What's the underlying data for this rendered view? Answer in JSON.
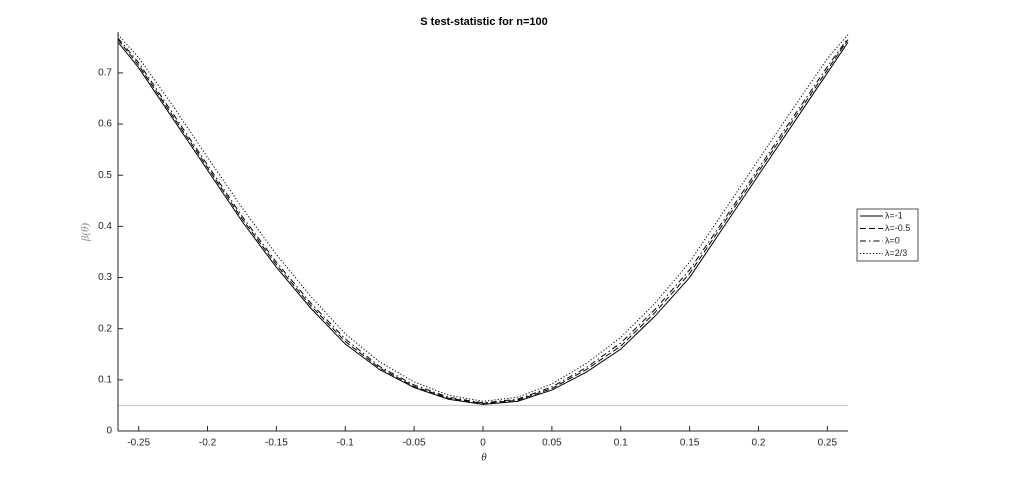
{
  "chart_data": {
    "type": "line",
    "title": "S test-statistic for n=100",
    "xlabel": "θ",
    "ylabel": "β(θ)",
    "x": [
      -0.265,
      -0.25,
      -0.225,
      -0.2,
      -0.175,
      -0.15,
      -0.125,
      -0.1,
      -0.075,
      -0.05,
      -0.025,
      0,
      0.025,
      0.05,
      0.075,
      0.1,
      0.125,
      0.15,
      0.175,
      0.2,
      0.225,
      0.25,
      0.265
    ],
    "series": [
      {
        "name": "λ=-1",
        "color": "#000000",
        "linestyle": "solid",
        "values": [
          0.76,
          0.71,
          0.61,
          0.51,
          0.41,
          0.32,
          0.24,
          0.17,
          0.12,
          0.085,
          0.062,
          0.052,
          0.058,
          0.08,
          0.115,
          0.16,
          0.225,
          0.3,
          0.4,
          0.5,
          0.6,
          0.7,
          0.76
        ]
      },
      {
        "name": "λ=-0.5",
        "color": "#000000",
        "linestyle": "dashed",
        "values": [
          0.765,
          0.715,
          0.615,
          0.515,
          0.415,
          0.325,
          0.245,
          0.175,
          0.123,
          0.087,
          0.064,
          0.054,
          0.06,
          0.083,
          0.12,
          0.166,
          0.232,
          0.308,
          0.407,
          0.507,
          0.607,
          0.706,
          0.765
        ]
      },
      {
        "name": "λ=0",
        "color": "#000000",
        "linestyle": "dashdot",
        "values": [
          0.768,
          0.72,
          0.62,
          0.52,
          0.42,
          0.33,
          0.25,
          0.18,
          0.126,
          0.09,
          0.066,
          0.055,
          0.062,
          0.086,
          0.124,
          0.172,
          0.238,
          0.315,
          0.413,
          0.513,
          0.613,
          0.712,
          0.768
        ]
      },
      {
        "name": "λ=2/3",
        "color": "#000000",
        "linestyle": "dotted",
        "values": [
          0.775,
          0.73,
          0.635,
          0.535,
          0.437,
          0.345,
          0.263,
          0.19,
          0.135,
          0.096,
          0.07,
          0.058,
          0.066,
          0.092,
          0.132,
          0.183,
          0.25,
          0.33,
          0.43,
          0.53,
          0.63,
          0.728,
          0.775
        ]
      }
    ],
    "reference_line": 0.05,
    "reference_color": "#c8c8c8",
    "xlim": [
      -0.265,
      0.265
    ],
    "xticks": [
      -0.25,
      -0.2,
      -0.15,
      -0.1,
      -0.05,
      0,
      0.05,
      0.1,
      0.15,
      0.2,
      0.25
    ],
    "ylim": [
      0,
      0.78
    ],
    "yticks": [
      0,
      0.1,
      0.2,
      0.3,
      0.4,
      0.5,
      0.6,
      0.7
    ],
    "legend": "right"
  }
}
